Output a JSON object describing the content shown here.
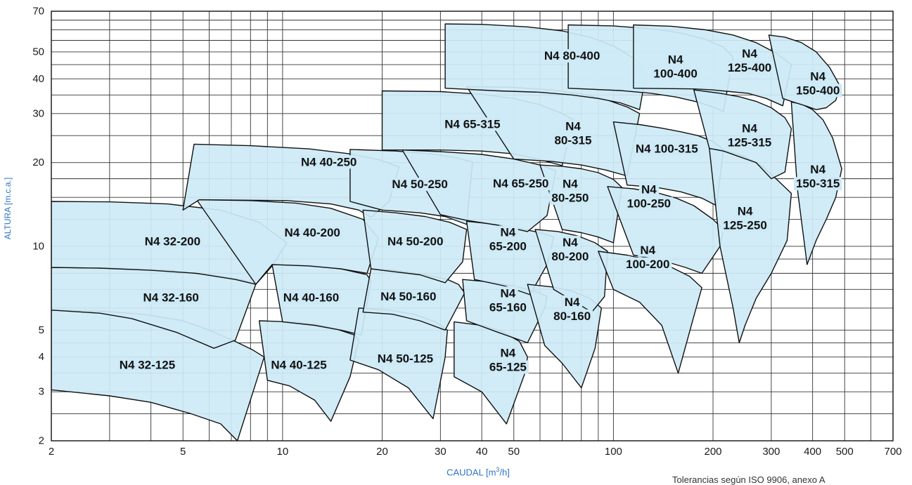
{
  "chart_data": {
    "type": "area",
    "title": "",
    "xlabel": "CAUDAL [m³/h]",
    "xlabel_main": "CAUDAL [m",
    "xlabel_sup": "3",
    "xlabel_tail": "/h]",
    "ylabel": "ALTURA [m.c.a.]",
    "x_scale": "log",
    "y_scale": "log",
    "xlim": [
      2,
      700
    ],
    "ylim": [
      2,
      70
    ],
    "xticks": [
      2,
      5,
      10,
      20,
      30,
      40,
      50,
      100,
      200,
      300,
      400,
      500,
      700
    ],
    "xtick_labels": [
      "2",
      "5",
      "10",
      "20",
      "30",
      "40",
      "50",
      "100",
      "200",
      "300",
      "400",
      "500",
      "700"
    ],
    "yticks": [
      2,
      3,
      4,
      5,
      10,
      20,
      30,
      40,
      50,
      70
    ],
    "ytick_labels": [
      "2",
      "3",
      "4",
      "5",
      "10",
      "20",
      "30",
      "40",
      "50",
      "70"
    ],
    "grid": true,
    "fill_color": "#cdeaf6",
    "outline_color": "#111111",
    "label_color": "#2f73c8",
    "note": "Tolerancias según ISO 9906, anexo A",
    "series": [
      {
        "name": "N4 32-125",
        "label": [
          "N4 32-125"
        ],
        "label_at": [
          3.9,
          3.75
        ],
        "x": [
          2,
          2.8,
          3.8,
          5,
          6,
          7.2,
          8.1,
          8.8,
          7.3,
          6.5,
          5.3,
          4,
          3,
          2
        ],
        "y": [
          5.9,
          5.85,
          5.7,
          5.4,
          5.0,
          4.55,
          4.25,
          4.0,
          2.0,
          2.3,
          2.5,
          2.75,
          2.9,
          3.05
        ]
      },
      {
        "name": "N4 32-160",
        "label": [
          "N4 32-160"
        ],
        "label_at": [
          4.6,
          6.55
        ],
        "x": [
          2,
          3,
          4.5,
          6,
          7.5,
          8.3,
          7.2,
          6.2,
          4.8,
          3.5,
          2.8,
          2
        ],
        "y": [
          8.4,
          8.35,
          8.2,
          7.9,
          7.6,
          7.3,
          4.6,
          4.3,
          4.9,
          5.5,
          5.75,
          5.9
        ]
      },
      {
        "name": "N4 32-200",
        "label": [
          "N4 32-200"
        ],
        "label_at": [
          4.65,
          10.4
        ],
        "x": [
          2,
          3,
          4.5,
          6.5,
          8.5,
          10.3,
          9.3,
          8.3,
          7.2,
          5.5,
          4,
          2.8,
          2
        ],
        "y": [
          14.5,
          14.45,
          14.2,
          13.5,
          12.2,
          10.3,
          8.5,
          7.3,
          7.6,
          8.0,
          8.2,
          8.35,
          8.4
        ]
      },
      {
        "name": "N4 40-125",
        "label": [
          "N4 40-125"
        ],
        "label_at": [
          11.2,
          3.75
        ],
        "x": [
          8.5,
          10.5,
          12.5,
          14.5,
          16.5,
          17,
          16,
          14,
          12.5,
          10.5,
          9,
          8.5
        ],
        "y": [
          5.4,
          5.35,
          5.25,
          5.05,
          4.8,
          4.6,
          3.4,
          2.35,
          2.8,
          3.15,
          3.3,
          5.4
        ]
      },
      {
        "name": "N4 40-160",
        "label": [
          "N4 40-160"
        ],
        "label_at": [
          12.2,
          6.55
        ],
        "x": [
          9.3,
          12,
          15,
          18,
          18.5,
          17.3,
          15,
          12.5,
          10,
          9.3
        ],
        "y": [
          8.6,
          8.55,
          8.3,
          7.9,
          7.5,
          4.8,
          5.0,
          5.2,
          5.35,
          8.6
        ]
      },
      {
        "name": "N4 40-200",
        "label": [
          "N4 40-200"
        ],
        "label_at": [
          12.3,
          11.2
        ],
        "x": [
          5.5,
          8,
          11,
          14,
          17.5,
          19.5,
          18,
          15,
          12,
          9.3,
          8.3,
          5.5
        ],
        "y": [
          14.7,
          14.6,
          14.3,
          13.7,
          12.5,
          10.7,
          8.0,
          8.3,
          8.5,
          8.6,
          7.3,
          14.7
        ]
      },
      {
        "name": "N4 40-250",
        "label": [
          "N4 40-250"
        ],
        "label_at": [
          13.8,
          20.1
        ],
        "x": [
          5.4,
          8,
          12,
          16,
          19.5,
          22.5,
          21,
          18.5,
          17,
          14,
          10.3,
          5.6,
          5.0
        ],
        "y": [
          23.3,
          23.0,
          22.4,
          21.5,
          20.5,
          19.3,
          14.5,
          12.7,
          13.5,
          14.2,
          14.6,
          14.7,
          13.5
        ]
      },
      {
        "name": "N4 50-125",
        "label": [
          "N4 50-125"
        ],
        "label_at": [
          23.5,
          3.95
        ],
        "x": [
          17,
          21,
          25,
          29,
          31.5,
          31,
          28.5,
          24,
          19.5,
          16,
          17
        ],
        "y": [
          6.0,
          5.9,
          5.7,
          5.35,
          5.0,
          4.0,
          2.4,
          3.1,
          3.6,
          3.9,
          6.0
        ]
      },
      {
        "name": "N4 50-160",
        "label": [
          "N4 50-160"
        ],
        "label_at": [
          24,
          6.6
        ],
        "x": [
          18.5,
          22,
          27,
          31.5,
          34,
          35.5,
          31,
          26,
          21.5,
          17.5,
          18.5
        ],
        "y": [
          8.3,
          8.2,
          7.9,
          7.6,
          7.3,
          6.8,
          5.0,
          5.4,
          5.7,
          5.8,
          8.3
        ]
      },
      {
        "name": "N4 50-200",
        "label": [
          "N4 50-200"
        ],
        "label_at": [
          25.2,
          10.4
        ],
        "x": [
          17.5,
          22,
          27,
          32,
          36,
          35,
          31,
          26,
          20,
          18.5,
          17.5
        ],
        "y": [
          13.5,
          13.2,
          12.8,
          12.2,
          11.5,
          8.8,
          7.4,
          7.9,
          8.2,
          8.3,
          13.5
        ]
      },
      {
        "name": "N4 50-250",
        "label": [
          "N4 50-250"
        ],
        "label_at": [
          26,
          16.7
        ],
        "x": [
          16,
          22,
          28,
          33,
          37.5,
          36,
          31,
          26,
          20,
          16,
          16
        ],
        "y": [
          22.3,
          22.0,
          21.5,
          20.9,
          20.1,
          12.0,
          12.8,
          13.2,
          13.5,
          14.5,
          22.3
        ]
      },
      {
        "name": "N4 65-125",
        "label": [
          "N4",
          "65-125"
        ],
        "label_at": [
          48,
          3.9
        ],
        "x": [
          33,
          40,
          46,
          52,
          55,
          54,
          47.5,
          40,
          33,
          33
        ],
        "y": [
          5.35,
          5.2,
          4.95,
          4.55,
          4.0,
          3.5,
          2.3,
          3.0,
          3.4,
          5.35
        ]
      },
      {
        "name": "N4 65-160",
        "label": [
          "N4",
          "65-160"
        ],
        "label_at": [
          48,
          6.4
        ],
        "x": [
          35,
          42,
          50,
          58,
          63,
          62,
          55,
          45,
          36,
          35
        ],
        "y": [
          7.6,
          7.45,
          7.2,
          6.9,
          6.6,
          6.0,
          4.5,
          4.9,
          5.4,
          7.6
        ]
      },
      {
        "name": "N4 65-200",
        "label": [
          "N4",
          "65-200"
        ],
        "label_at": [
          48,
          10.6
        ],
        "x": [
          36,
          44,
          52,
          60,
          66,
          63,
          56,
          47,
          38,
          36
        ],
        "y": [
          12.3,
          12.0,
          11.6,
          11.2,
          10.8,
          8.6,
          6.7,
          7.2,
          7.6,
          12.3
        ]
      },
      {
        "name": "N4 65-250",
        "label": [
          "N4 65-250"
        ],
        "label_at": [
          52.5,
          16.8
        ],
        "x": [
          23,
          30,
          40,
          50,
          60,
          67,
          63,
          55,
          45,
          36,
          30,
          23
        ],
        "y": [
          22.2,
          21.9,
          21.4,
          20.6,
          19.6,
          18.7,
          12.9,
          11.3,
          11.9,
          12.4,
          13.0,
          22.2
        ]
      },
      {
        "name": "N4 65-315",
        "label": [
          "N4 65-315"
        ],
        "label_at": [
          37.5,
          27.5
        ],
        "x": [
          20,
          30,
          40,
          50,
          60,
          70,
          76,
          70,
          60,
          50,
          40,
          30,
          20,
          20
        ],
        "y": [
          36.2,
          36.0,
          35.2,
          34.0,
          32.3,
          30.0,
          28.5,
          19.5,
          20.5,
          21.5,
          22.0,
          22.2,
          22.2,
          36.2
        ]
      },
      {
        "name": "N4 80-160",
        "label": [
          "N4",
          "80-160"
        ],
        "label_at": [
          75,
          5.95
        ],
        "x": [
          55,
          65,
          75,
          85,
          92,
          88,
          80,
          70,
          62,
          55
        ],
        "y": [
          7.3,
          7.15,
          6.9,
          6.5,
          6.0,
          4.3,
          3.1,
          3.8,
          4.4,
          7.3
        ]
      },
      {
        "name": "N4 80-200",
        "label": [
          "N4",
          "80-200"
        ],
        "label_at": [
          74,
          9.75
        ],
        "x": [
          58,
          68,
          78,
          88,
          96,
          94,
          86,
          75,
          66,
          58
        ],
        "y": [
          11.5,
          11.3,
          10.9,
          10.3,
          9.6,
          6.6,
          5.8,
          6.4,
          7.0,
          11.5
        ]
      },
      {
        "name": "N4 80-250",
        "label": [
          "N4",
          "80-250"
        ],
        "label_at": [
          74,
          15.8
        ],
        "x": [
          60,
          70,
          80,
          90,
          100,
          106,
          100,
          90,
          80,
          70,
          60
        ],
        "y": [
          19.6,
          19.4,
          19.0,
          18.4,
          17.4,
          16.3,
          10.3,
          10.8,
          11.2,
          11.5,
          19.6
        ]
      },
      {
        "name": "N4 80-315",
        "label": [
          "N4",
          "80-315"
        ],
        "label_at": [
          75.5,
          25.5
        ],
        "x": [
          36,
          50,
          65,
          80,
          95,
          110,
          120,
          110,
          95,
          80,
          65,
          50,
          36
        ],
        "y": [
          37.5,
          37.3,
          36.5,
          35.3,
          33.7,
          31.7,
          30.0,
          17.9,
          18.8,
          19.6,
          20.2,
          20.6,
          37.5
        ]
      },
      {
        "name": "N4 80-400",
        "label": [
          "N4 80-400"
        ],
        "label_at": [
          75,
          48.4
        ],
        "x": [
          31,
          40,
          55,
          70,
          85,
          100,
          115,
          126,
          120,
          105,
          90,
          75,
          60,
          45,
          31
        ],
        "y": [
          63.0,
          62.8,
          61.5,
          59.5,
          56.5,
          52.5,
          47.5,
          43.0,
          31.0,
          32.8,
          34.0,
          35.0,
          35.8,
          36.2,
          37.0
        ]
      },
      {
        "name": "N4 100-200",
        "label": [
          "N4",
          "100-200"
        ],
        "label_at": [
          127,
          9.15
        ],
        "x": [
          90,
          110,
          130,
          150,
          170,
          185,
          175,
          157,
          140,
          120,
          100,
          90
        ],
        "y": [
          9.6,
          9.3,
          8.9,
          8.4,
          7.8,
          7.1,
          5.6,
          3.5,
          5.2,
          6.3,
          7.0,
          9.6
        ]
      },
      {
        "name": "N4 100-250",
        "label": [
          "N4",
          "100-250"
        ],
        "label_at": [
          128,
          15.1
        ],
        "x": [
          96,
          115,
          135,
          155,
          175,
          200,
          215,
          210,
          185,
          165,
          140,
          115,
          96
        ],
        "y": [
          16.4,
          16.1,
          15.6,
          14.9,
          14.0,
          12.5,
          11.5,
          10.0,
          8.0,
          8.4,
          8.9,
          9.3,
          16.4
        ]
      },
      {
        "name": "N4 100-315",
        "label": [
          "N4 100-315"
        ],
        "label_at": [
          145,
          22.4
        ],
        "x": [
          100,
          120,
          140,
          160,
          180,
          200,
          215,
          205,
          185,
          160,
          135,
          110,
          100
        ],
        "y": [
          28.0,
          27.4,
          26.6,
          25.8,
          25.0,
          23.8,
          22.3,
          14.0,
          14.9,
          15.7,
          16.3,
          16.6,
          28.0
        ]
      },
      {
        "name": "N4 100-400",
        "label": [
          "N4",
          "100-400"
        ],
        "label_at": [
          154,
          44.2
        ],
        "x": [
          73,
          100,
          130,
          160,
          190,
          215,
          230,
          215,
          200,
          180,
          155,
          130,
          105,
          73
        ],
        "y": [
          62.5,
          62.0,
          60.5,
          58.5,
          55.5,
          52.0,
          48.0,
          30.5,
          31.7,
          33.0,
          34.4,
          35.5,
          36.3,
          37.0
        ]
      },
      {
        "name": "N4 125-250",
        "label": [
          "N4",
          "125-250"
        ],
        "label_at": [
          250,
          12.6
        ],
        "x": [
          195,
          220,
          250,
          280,
          310,
          345,
          335,
          300,
          270,
          250,
          240,
          230,
          210,
          195
        ],
        "y": [
          22.5,
          22.0,
          21.0,
          19.5,
          17.5,
          15.5,
          10.5,
          8.0,
          6.5,
          5.2,
          4.5,
          6.0,
          10.0,
          22.5
        ]
      },
      {
        "name": "N4 125-315",
        "label": [
          "N4",
          "125-315"
        ],
        "label_at": [
          258,
          25.0
        ],
        "x": [
          175,
          210,
          240,
          270,
          300,
          330,
          345,
          330,
          300,
          270,
          240,
          215,
          195,
          175
        ],
        "y": [
          36.5,
          35.5,
          34.5,
          33.2,
          31.5,
          29.0,
          26.5,
          18.5,
          17.5,
          20.0,
          21.0,
          22.0,
          22.5,
          36.5
        ]
      },
      {
        "name": "N4 125-400",
        "label": [
          "N4",
          "125-400"
        ],
        "label_at": [
          258,
          46.5
        ],
        "x": [
          115,
          150,
          190,
          230,
          270,
          310,
          345,
          325,
          290,
          255,
          225,
          200,
          175,
          115
        ],
        "y": [
          62.5,
          61.8,
          60.0,
          57.5,
          54.0,
          49.5,
          45.0,
          32.0,
          34.0,
          35.5,
          36.0,
          36.5,
          36.8,
          37.0
        ]
      },
      {
        "name": "N4 150-315",
        "label": [
          "N4",
          "150-315"
        ],
        "label_at": [
          415,
          17.8
        ],
        "x": [
          345,
          370,
          400,
          430,
          460,
          490,
          470,
          440,
          410,
          385,
          360,
          345
        ],
        "y": [
          33.0,
          32.5,
          31.0,
          28.5,
          24.5,
          19.0,
          15.0,
          12.5,
          10.5,
          8.6,
          16.0,
          33.0
        ]
      },
      {
        "name": "N4 150-400",
        "label": [
          "N4",
          "150-400"
        ],
        "label_at": [
          415,
          38.5
        ],
        "x": [
          295,
          330,
          370,
          410,
          450,
          485,
          470,
          440,
          410,
          380,
          350,
          325,
          295
        ],
        "y": [
          57.5,
          56.5,
          54.0,
          50.0,
          44.0,
          37.5,
          33.5,
          31.5,
          31.0,
          32.0,
          33.0,
          34.0,
          57.5
        ]
      }
    ]
  }
}
